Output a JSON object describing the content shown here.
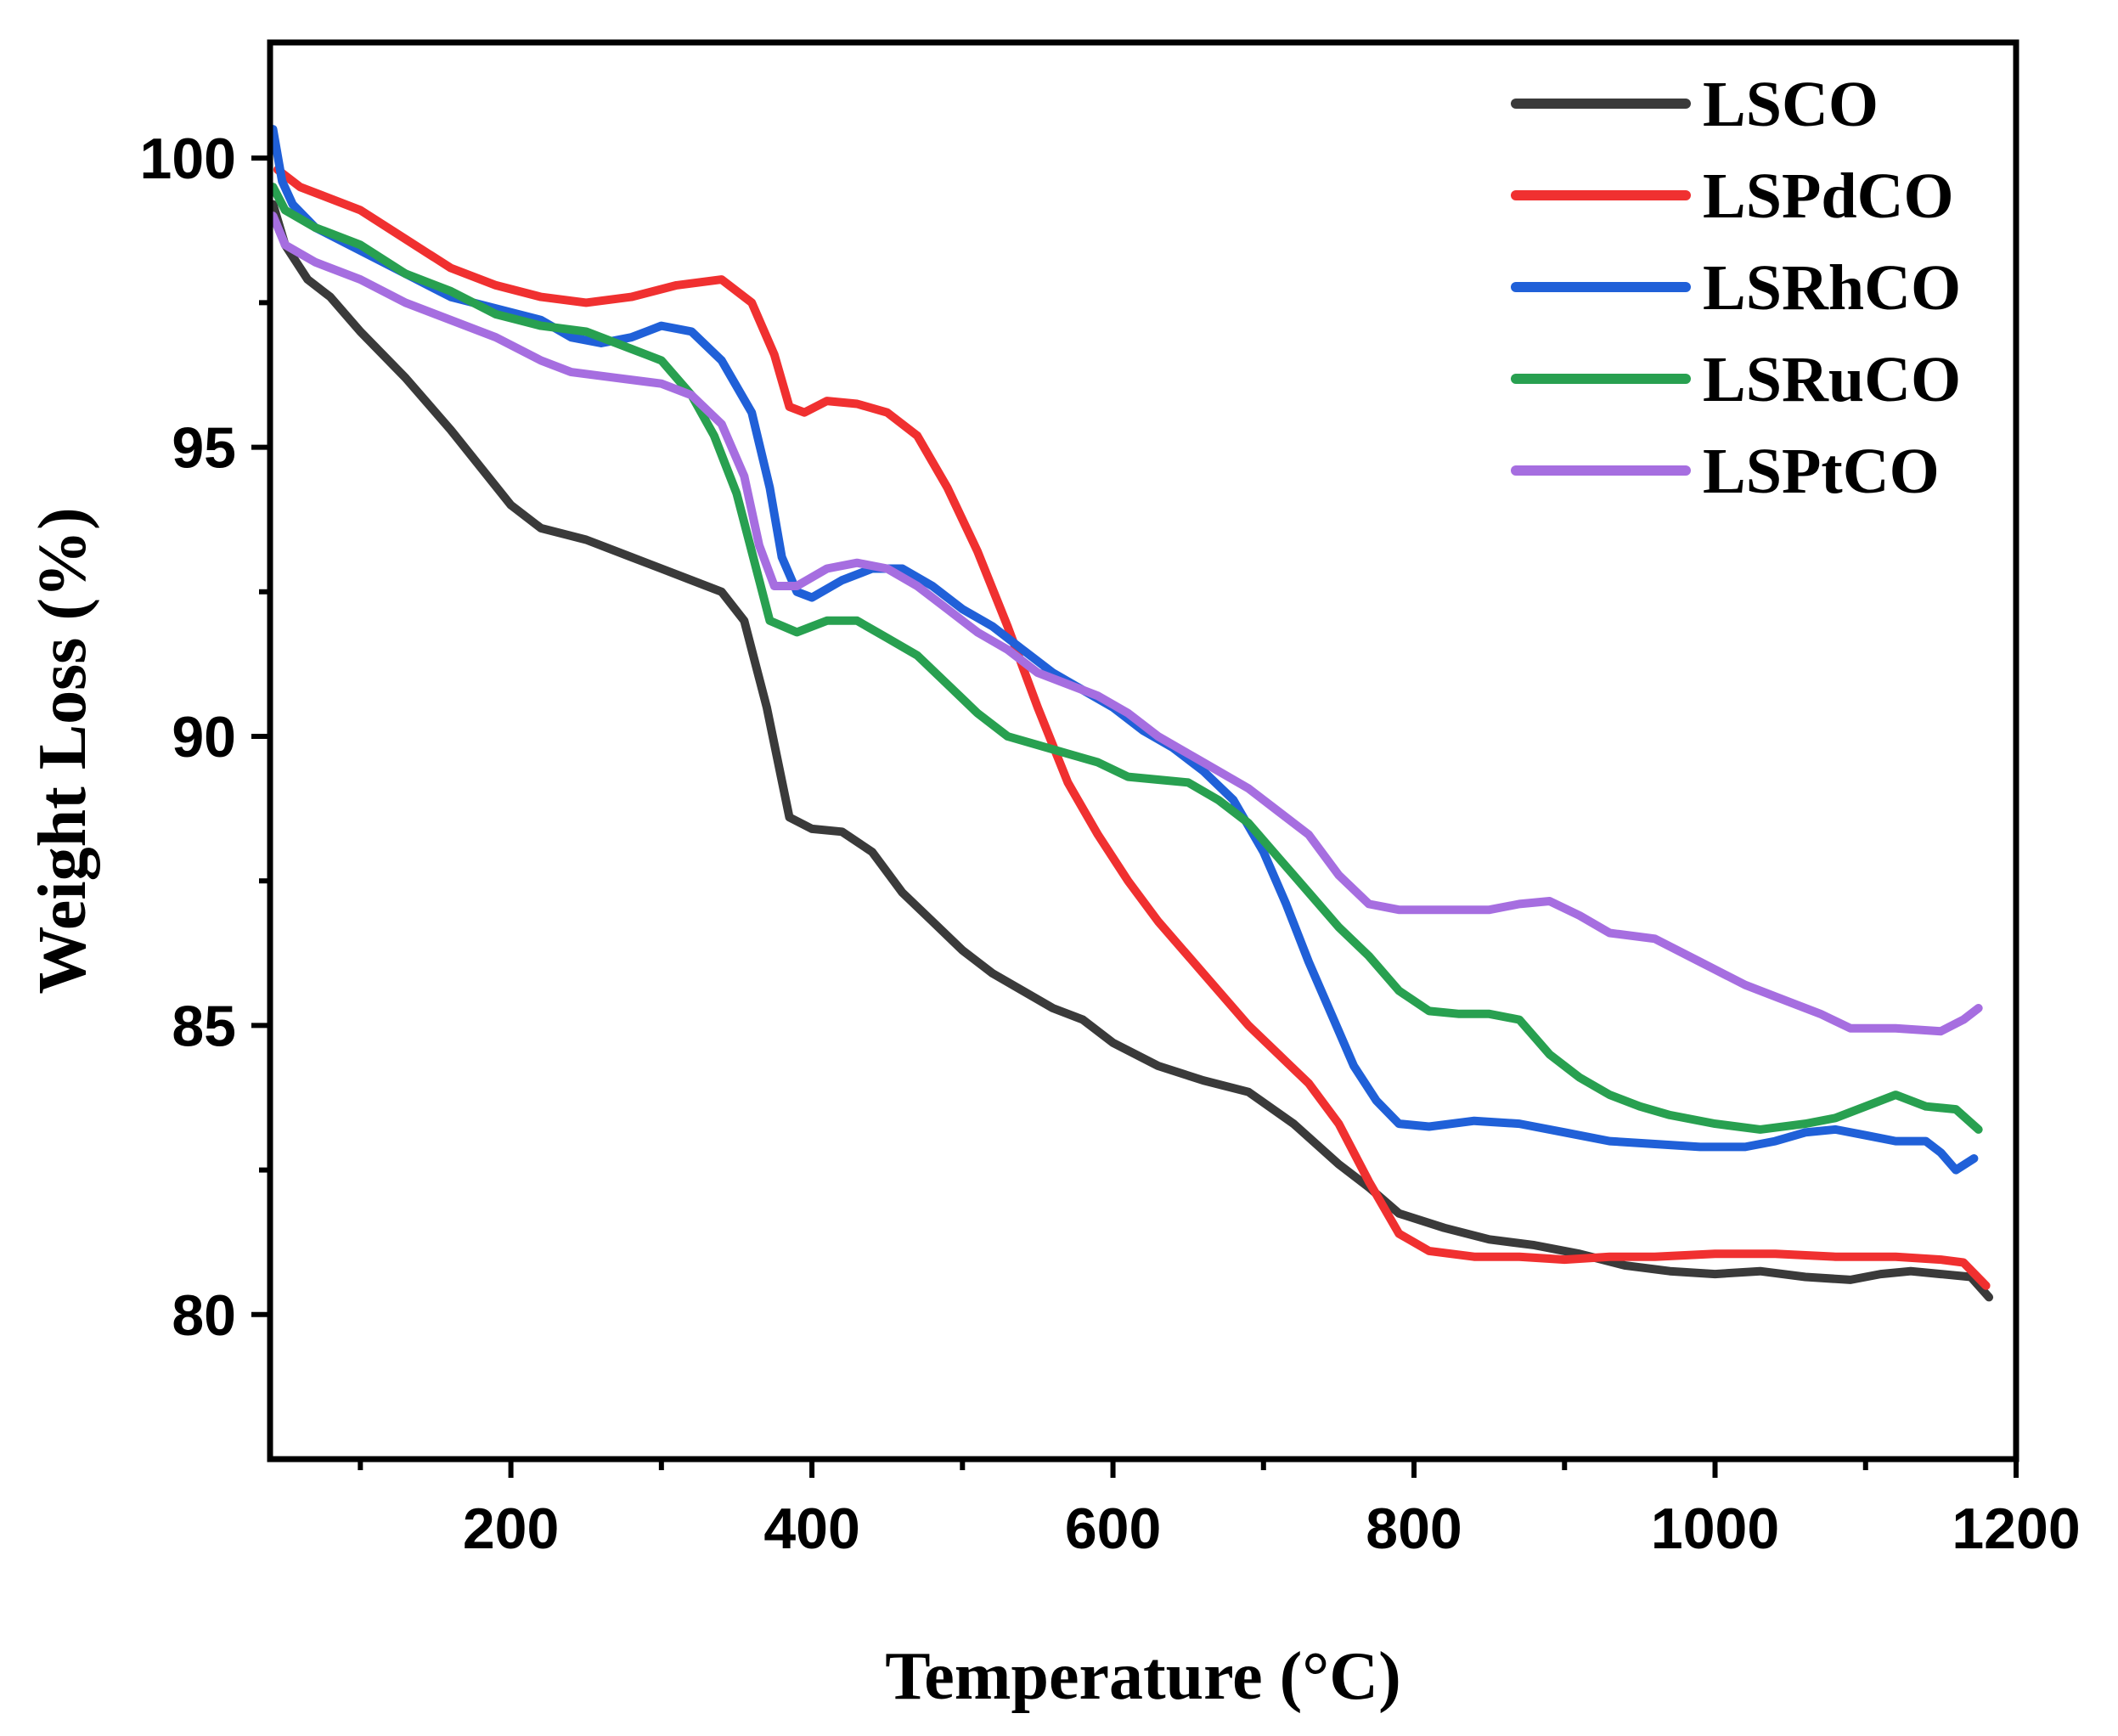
{
  "chart_data": {
    "type": "line",
    "title": "",
    "xlabel": "Temperature (°C)",
    "ylabel": "Weight Loss (%)",
    "xlim": [
      40,
      1200
    ],
    "ylim": [
      77.5,
      102
    ],
    "xticks": [
      200,
      400,
      600,
      800,
      1000,
      1200
    ],
    "xtick_labels": [
      "200",
      "400",
      "600",
      "800",
      "1000",
      "1200"
    ],
    "yticks": [
      80,
      85,
      90,
      95,
      100
    ],
    "ytick_labels": [
      "80",
      "85",
      "90",
      "95",
      "100"
    ],
    "grid": false,
    "legend_position": "top-right",
    "series": [
      {
        "name": "LSCO",
        "color": "#3a3a3a",
        "points": [
          [
            42,
            99.2
          ],
          [
            50,
            98.5
          ],
          [
            65,
            97.9
          ],
          [
            80,
            97.6
          ],
          [
            100,
            97.0
          ],
          [
            130,
            96.2
          ],
          [
            160,
            95.3
          ],
          [
            200,
            94.0
          ],
          [
            220,
            93.6
          ],
          [
            250,
            93.4
          ],
          [
            280,
            93.1
          ],
          [
            300,
            92.9
          ],
          [
            320,
            92.7
          ],
          [
            340,
            92.5
          ],
          [
            355,
            92.0
          ],
          [
            370,
            90.5
          ],
          [
            385,
            88.6
          ],
          [
            400,
            88.4
          ],
          [
            420,
            88.35
          ],
          [
            440,
            88.0
          ],
          [
            460,
            87.3
          ],
          [
            480,
            86.8
          ],
          [
            500,
            86.3
          ],
          [
            520,
            85.9
          ],
          [
            540,
            85.6
          ],
          [
            560,
            85.3
          ],
          [
            580,
            85.1
          ],
          [
            600,
            84.7
          ],
          [
            630,
            84.3
          ],
          [
            660,
            84.05
          ],
          [
            690,
            83.85
          ],
          [
            720,
            83.3
          ],
          [
            750,
            82.6
          ],
          [
            770,
            82.2
          ],
          [
            790,
            81.75
          ],
          [
            820,
            81.5
          ],
          [
            850,
            81.3
          ],
          [
            880,
            81.2
          ],
          [
            910,
            81.05
          ],
          [
            940,
            80.85
          ],
          [
            970,
            80.75
          ],
          [
            1000,
            80.7
          ],
          [
            1030,
            80.75
          ],
          [
            1060,
            80.65
          ],
          [
            1090,
            80.6
          ],
          [
            1110,
            80.7
          ],
          [
            1130,
            80.75
          ],
          [
            1150,
            80.7
          ],
          [
            1170,
            80.65
          ],
          [
            1182,
            80.3
          ]
        ]
      },
      {
        "name": "LSPdCO",
        "color": "#f03030",
        "points": [
          [
            45,
            99.8
          ],
          [
            60,
            99.5
          ],
          [
            80,
            99.3
          ],
          [
            100,
            99.1
          ],
          [
            130,
            98.6
          ],
          [
            160,
            98.1
          ],
          [
            190,
            97.8
          ],
          [
            220,
            97.6
          ],
          [
            250,
            97.5
          ],
          [
            280,
            97.6
          ],
          [
            310,
            97.8
          ],
          [
            340,
            97.9
          ],
          [
            360,
            97.5
          ],
          [
            375,
            96.6
          ],
          [
            385,
            95.7
          ],
          [
            395,
            95.6
          ],
          [
            410,
            95.8
          ],
          [
            430,
            95.75
          ],
          [
            450,
            95.6
          ],
          [
            470,
            95.2
          ],
          [
            490,
            94.3
          ],
          [
            510,
            93.2
          ],
          [
            530,
            91.9
          ],
          [
            550,
            90.5
          ],
          [
            570,
            89.2
          ],
          [
            590,
            88.3
          ],
          [
            610,
            87.5
          ],
          [
            630,
            86.8
          ],
          [
            650,
            86.2
          ],
          [
            670,
            85.6
          ],
          [
            690,
            85.0
          ],
          [
            710,
            84.5
          ],
          [
            730,
            84.0
          ],
          [
            750,
            83.3
          ],
          [
            770,
            82.3
          ],
          [
            790,
            81.4
          ],
          [
            810,
            81.1
          ],
          [
            840,
            81.0
          ],
          [
            870,
            81.0
          ],
          [
            900,
            80.95
          ],
          [
            930,
            81.0
          ],
          [
            960,
            81.0
          ],
          [
            1000,
            81.05
          ],
          [
            1040,
            81.05
          ],
          [
            1080,
            81.0
          ],
          [
            1120,
            81.0
          ],
          [
            1150,
            80.95
          ],
          [
            1165,
            80.9
          ],
          [
            1180,
            80.5
          ]
        ]
      },
      {
        "name": "LSRhCO",
        "color": "#2060d8",
        "points": [
          [
            42,
            100.5
          ],
          [
            48,
            99.6
          ],
          [
            55,
            99.2
          ],
          [
            70,
            98.8
          ],
          [
            100,
            98.4
          ],
          [
            130,
            98.0
          ],
          [
            160,
            97.6
          ],
          [
            190,
            97.4
          ],
          [
            220,
            97.2
          ],
          [
            240,
            96.9
          ],
          [
            260,
            96.8
          ],
          [
            280,
            96.9
          ],
          [
            300,
            97.1
          ],
          [
            320,
            97.0
          ],
          [
            340,
            96.5
          ],
          [
            360,
            95.6
          ],
          [
            372,
            94.3
          ],
          [
            380,
            93.1
          ],
          [
            390,
            92.5
          ],
          [
            400,
            92.4
          ],
          [
            420,
            92.7
          ],
          [
            440,
            92.9
          ],
          [
            460,
            92.9
          ],
          [
            480,
            92.6
          ],
          [
            500,
            92.2
          ],
          [
            520,
            91.9
          ],
          [
            540,
            91.5
          ],
          [
            560,
            91.1
          ],
          [
            580,
            90.8
          ],
          [
            600,
            90.5
          ],
          [
            620,
            90.1
          ],
          [
            640,
            89.8
          ],
          [
            660,
            89.4
          ],
          [
            680,
            88.9
          ],
          [
            700,
            88.0
          ],
          [
            715,
            87.1
          ],
          [
            730,
            86.1
          ],
          [
            745,
            85.2
          ],
          [
            760,
            84.3
          ],
          [
            775,
            83.7
          ],
          [
            790,
            83.3
          ],
          [
            810,
            83.25
          ],
          [
            840,
            83.35
          ],
          [
            870,
            83.3
          ],
          [
            900,
            83.15
          ],
          [
            930,
            83.0
          ],
          [
            960,
            82.95
          ],
          [
            990,
            82.9
          ],
          [
            1020,
            82.9
          ],
          [
            1040,
            83.0
          ],
          [
            1060,
            83.15
          ],
          [
            1080,
            83.2
          ],
          [
            1100,
            83.1
          ],
          [
            1120,
            83.0
          ],
          [
            1140,
            83.0
          ],
          [
            1150,
            82.8
          ],
          [
            1160,
            82.5
          ],
          [
            1172,
            82.7
          ]
        ]
      },
      {
        "name": "LSRuCO",
        "color": "#28a050",
        "points": [
          [
            42,
            99.5
          ],
          [
            50,
            99.1
          ],
          [
            70,
            98.8
          ],
          [
            100,
            98.5
          ],
          [
            130,
            98.0
          ],
          [
            160,
            97.7
          ],
          [
            190,
            97.3
          ],
          [
            220,
            97.1
          ],
          [
            250,
            97.0
          ],
          [
            280,
            96.7
          ],
          [
            300,
            96.5
          ],
          [
            320,
            95.9
          ],
          [
            335,
            95.2
          ],
          [
            350,
            94.2
          ],
          [
            362,
            93.0
          ],
          [
            372,
            92.0
          ],
          [
            390,
            91.8
          ],
          [
            410,
            92.0
          ],
          [
            430,
            92.0
          ],
          [
            450,
            91.7
          ],
          [
            470,
            91.4
          ],
          [
            490,
            90.9
          ],
          [
            510,
            90.4
          ],
          [
            530,
            90.0
          ],
          [
            550,
            89.85
          ],
          [
            570,
            89.7
          ],
          [
            590,
            89.55
          ],
          [
            610,
            89.3
          ],
          [
            630,
            89.25
          ],
          [
            650,
            89.2
          ],
          [
            670,
            88.9
          ],
          [
            690,
            88.5
          ],
          [
            710,
            87.9
          ],
          [
            730,
            87.3
          ],
          [
            750,
            86.7
          ],
          [
            770,
            86.2
          ],
          [
            790,
            85.6
          ],
          [
            810,
            85.25
          ],
          [
            830,
            85.2
          ],
          [
            850,
            85.2
          ],
          [
            870,
            85.1
          ],
          [
            890,
            84.5
          ],
          [
            910,
            84.1
          ],
          [
            930,
            83.8
          ],
          [
            950,
            83.6
          ],
          [
            970,
            83.45
          ],
          [
            1000,
            83.3
          ],
          [
            1030,
            83.2
          ],
          [
            1060,
            83.3
          ],
          [
            1080,
            83.4
          ],
          [
            1100,
            83.6
          ],
          [
            1120,
            83.8
          ],
          [
            1140,
            83.6
          ],
          [
            1160,
            83.55
          ],
          [
            1175,
            83.2
          ]
        ]
      },
      {
        "name": "LSPtCO",
        "color": "#a66ee0",
        "points": [
          [
            42,
            99.0
          ],
          [
            50,
            98.5
          ],
          [
            70,
            98.2
          ],
          [
            100,
            97.9
          ],
          [
            130,
            97.5
          ],
          [
            160,
            97.2
          ],
          [
            190,
            96.9
          ],
          [
            220,
            96.5
          ],
          [
            240,
            96.3
          ],
          [
            270,
            96.2
          ],
          [
            300,
            96.1
          ],
          [
            320,
            95.9
          ],
          [
            340,
            95.4
          ],
          [
            355,
            94.5
          ],
          [
            365,
            93.3
          ],
          [
            375,
            92.6
          ],
          [
            390,
            92.6
          ],
          [
            410,
            92.9
          ],
          [
            430,
            93.0
          ],
          [
            450,
            92.9
          ],
          [
            470,
            92.6
          ],
          [
            490,
            92.2
          ],
          [
            510,
            91.8
          ],
          [
            530,
            91.5
          ],
          [
            550,
            91.1
          ],
          [
            570,
            90.9
          ],
          [
            590,
            90.7
          ],
          [
            610,
            90.4
          ],
          [
            630,
            90.0
          ],
          [
            650,
            89.7
          ],
          [
            670,
            89.4
          ],
          [
            690,
            89.1
          ],
          [
            710,
            88.7
          ],
          [
            730,
            88.3
          ],
          [
            750,
            87.6
          ],
          [
            770,
            87.1
          ],
          [
            790,
            87.0
          ],
          [
            820,
            87.0
          ],
          [
            850,
            87.0
          ],
          [
            870,
            87.1
          ],
          [
            890,
            87.15
          ],
          [
            910,
            86.9
          ],
          [
            930,
            86.6
          ],
          [
            960,
            86.5
          ],
          [
            990,
            86.1
          ],
          [
            1020,
            85.7
          ],
          [
            1050,
            85.4
          ],
          [
            1070,
            85.2
          ],
          [
            1090,
            84.95
          ],
          [
            1120,
            84.95
          ],
          [
            1150,
            84.9
          ],
          [
            1165,
            85.1
          ],
          [
            1175,
            85.3
          ]
        ]
      }
    ]
  }
}
